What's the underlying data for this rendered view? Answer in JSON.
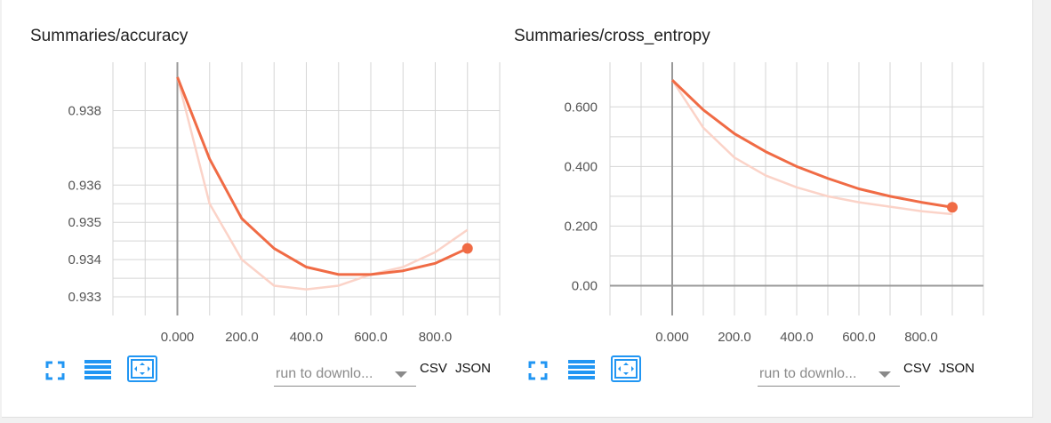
{
  "charts": [
    {
      "title": "Summaries/accuracy",
      "controls": {
        "expand_icon": "fullscreen-icon",
        "log_icon": "lines-icon",
        "fit_icon": "fit-domain-icon",
        "run_placeholder": "run to downlo...",
        "csv_label": "CSV",
        "json_label": "JSON"
      }
    },
    {
      "title": "Summaries/cross_entropy",
      "controls": {
        "expand_icon": "fullscreen-icon",
        "log_icon": "lines-icon",
        "fit_icon": "fit-domain-icon",
        "run_placeholder": "run to downlo...",
        "csv_label": "CSV",
        "json_label": "JSON"
      }
    }
  ],
  "chart_data": [
    {
      "type": "line",
      "title": "Summaries/accuracy",
      "xlabel": "",
      "ylabel": "",
      "x_ticks": [
        "0.000",
        "200.0",
        "400.0",
        "600.0",
        "800.0"
      ],
      "y_ticks": [
        "0.933",
        "0.934",
        "0.935",
        "0.936",
        "0.938"
      ],
      "xlim": [
        -200,
        1000
      ],
      "ylim": [
        0.9325,
        0.9393
      ],
      "grid": true,
      "colors": {
        "smoothed": "#f06b45",
        "raw": "#fbd3c8",
        "axis": "#999999",
        "grid": "#d5d5d5"
      },
      "series": [
        {
          "role": "raw",
          "x": [
            0,
            100,
            200,
            300,
            400,
            500,
            600,
            700,
            800,
            900
          ],
          "y": [
            0.9389,
            0.9355,
            0.934,
            0.9333,
            0.9332,
            0.9333,
            0.9336,
            0.9338,
            0.9342,
            0.9348
          ]
        },
        {
          "role": "smoothed",
          "x": [
            0,
            100,
            200,
            300,
            400,
            500,
            600,
            700,
            800,
            900
          ],
          "y": [
            0.9389,
            0.9367,
            0.9351,
            0.9343,
            0.9338,
            0.9336,
            0.9336,
            0.9337,
            0.9339,
            0.9343
          ]
        }
      ]
    },
    {
      "type": "line",
      "title": "Summaries/cross_entropy",
      "xlabel": "",
      "ylabel": "",
      "x_ticks": [
        "0.000",
        "200.0",
        "400.0",
        "600.0",
        "800.0"
      ],
      "y_ticks": [
        "0.00",
        "0.200",
        "0.400",
        "0.600"
      ],
      "xlim": [
        -200,
        1000
      ],
      "ylim": [
        -0.1,
        0.75
      ],
      "grid": true,
      "colors": {
        "smoothed": "#f06b45",
        "raw": "#fbd3c8",
        "axis": "#999999",
        "grid": "#d5d5d5"
      },
      "series": [
        {
          "role": "raw",
          "x": [
            0,
            100,
            200,
            300,
            400,
            500,
            600,
            700,
            800,
            900
          ],
          "y": [
            0.69,
            0.53,
            0.43,
            0.37,
            0.33,
            0.3,
            0.28,
            0.265,
            0.25,
            0.24
          ]
        },
        {
          "role": "smoothed",
          "x": [
            0,
            100,
            200,
            300,
            400,
            500,
            600,
            700,
            800,
            900
          ],
          "y": [
            0.69,
            0.59,
            0.51,
            0.45,
            0.4,
            0.36,
            0.325,
            0.3,
            0.28,
            0.263
          ]
        }
      ]
    }
  ]
}
